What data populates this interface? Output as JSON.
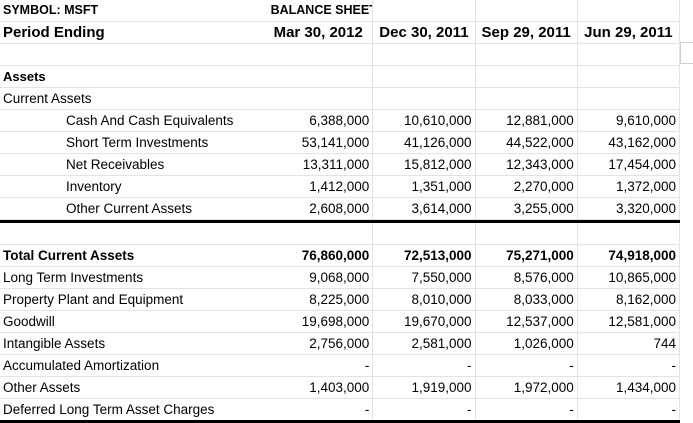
{
  "header": {
    "symbol_label": "SYMBOL: MSFT",
    "sheet_title": "BALANCE SHEET",
    "period_label": "Period Ending",
    "periods": [
      "Mar 30, 2012",
      "Dec 30, 2011",
      "Sep 29, 2011",
      "Jun 29, 2011"
    ]
  },
  "sections": {
    "assets": "Assets",
    "current_assets": "Current Assets"
  },
  "current_rows": [
    {
      "label": "Cash And Cash Equivalents",
      "values": [
        "6,388,000",
        "10,610,000",
        "12,881,000",
        "9,610,000"
      ]
    },
    {
      "label": "Short Term Investments",
      "values": [
        "53,141,000",
        "41,126,000",
        "44,522,000",
        "43,162,000"
      ]
    },
    {
      "label": "Net Receivables",
      "values": [
        "13,311,000",
        "15,812,000",
        "12,343,000",
        "17,454,000"
      ]
    },
    {
      "label": "Inventory",
      "values": [
        "1,412,000",
        "1,351,000",
        "2,270,000",
        "1,372,000"
      ]
    },
    {
      "label": "Other Current Assets",
      "values": [
        "2,608,000",
        "3,614,000",
        "3,255,000",
        "3,320,000"
      ]
    }
  ],
  "total_current": {
    "label": "Total Current Assets",
    "values": [
      "76,860,000",
      "72,513,000",
      "75,271,000",
      "74,918,000"
    ]
  },
  "other_rows": [
    {
      "label": "Long Term Investments",
      "values": [
        "9,068,000",
        "7,550,000",
        "8,576,000",
        "10,865,000"
      ]
    },
    {
      "label": "Property Plant and Equipment",
      "values": [
        "8,225,000",
        "8,010,000",
        "8,033,000",
        "8,162,000"
      ]
    },
    {
      "label": "Goodwill",
      "values": [
        "19,698,000",
        "19,670,000",
        "12,537,000",
        "12,581,000"
      ]
    },
    {
      "label": "Intangible Assets",
      "values": [
        "2,756,000",
        "2,581,000",
        "1,026,000",
        "744"
      ]
    },
    {
      "label": "Accumulated Amortization",
      "values": [
        "-",
        "-",
        "-",
        "-"
      ]
    },
    {
      "label": "Other Assets",
      "values": [
        "1,403,000",
        "1,919,000",
        "1,972,000",
        "1,434,000"
      ]
    },
    {
      "label": "Deferred Long Term Asset Charges",
      "values": [
        "-",
        "-",
        "-",
        "-"
      ]
    }
  ]
}
